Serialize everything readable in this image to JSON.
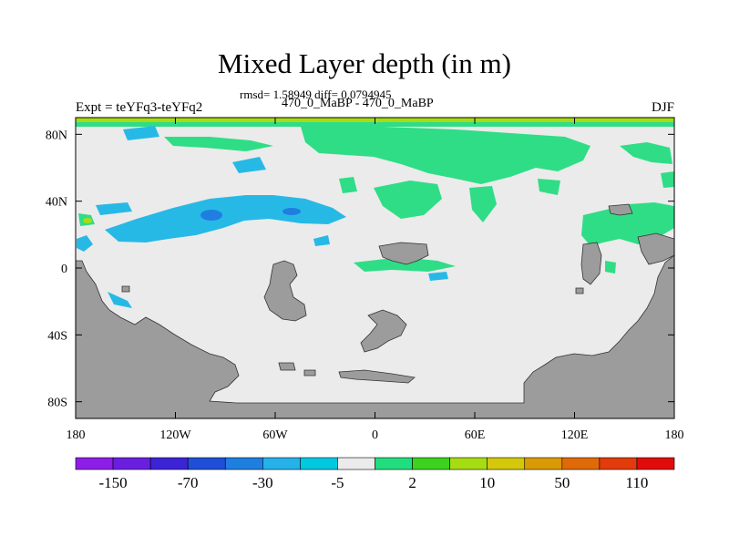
{
  "header": {
    "title": "Mixed Layer depth (in m)",
    "stats": "rmsd= 1.58949 diff= 0.0794945",
    "subtitle": "470_0_MaBP - 470_0_MaBP",
    "left_label": "Expt = teYFq3-teYFq2",
    "right_label": "DJF"
  },
  "map": {
    "lon_range": [
      -180,
      180
    ],
    "lat_range": [
      -90,
      90
    ],
    "x_ticks": [
      {
        "lon": -180,
        "label": "180"
      },
      {
        "lon": -120,
        "label": "120W"
      },
      {
        "lon": -60,
        "label": "60W"
      },
      {
        "lon": 0,
        "label": "0"
      },
      {
        "lon": 60,
        "label": "60E"
      },
      {
        "lon": 120,
        "label": "120E"
      },
      {
        "lon": 180,
        "label": "180"
      }
    ],
    "y_ticks": [
      {
        "lat": 80,
        "label": "80N"
      },
      {
        "lat": 40,
        "label": "40N"
      },
      {
        "lat": 0,
        "label": "0"
      },
      {
        "lat": -40,
        "label": "40S"
      },
      {
        "lat": -80,
        "label": "80S"
      }
    ],
    "colors": {
      "background_field": "#ebebeb",
      "land": "#9c9c9c",
      "positive": "#2fdd86",
      "negative": "#27b9e6",
      "strong_negative": "#1f7ee0"
    }
  },
  "colorbar": {
    "colors": [
      "#8c1ee6",
      "#6a1fe0",
      "#3b23d6",
      "#1f4fd6",
      "#1e7fe0",
      "#26b1ea",
      "#00c8e0",
      "#ebebeb",
      "#22dd7e",
      "#3cd21e",
      "#a8dc12",
      "#d4c80a",
      "#d99a06",
      "#e06a08",
      "#e23c0c",
      "#e00c0c"
    ],
    "labels": [
      "-150",
      "-70",
      "-30",
      "-5",
      "2",
      "10",
      "50",
      "110"
    ]
  }
}
